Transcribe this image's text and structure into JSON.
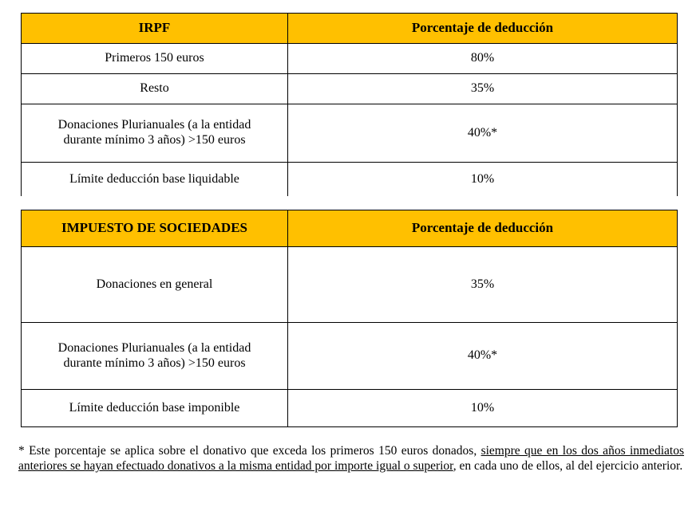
{
  "colors": {
    "header_bg": "#ffc000",
    "border": "#000000",
    "text": "#000000",
    "page_bg": "#ffffff"
  },
  "tables": {
    "irpf": {
      "headers": [
        "IRPF",
        "Porcentaje de deducción"
      ],
      "rows": [
        {
          "concept": "Primeros 150 euros",
          "value": "80%"
        },
        {
          "concept": "Resto",
          "value": "35%"
        },
        {
          "concept": "Donaciones Plurianuales (a la entidad durante mínimo 3 años) >150 euros",
          "value": "40%*"
        },
        {
          "concept": "Límite deducción base liquidable",
          "value": "10%"
        }
      ]
    },
    "sociedades": {
      "headers": [
        "IMPUESTO DE SOCIEDADES",
        "Porcentaje de deducción"
      ],
      "rows": [
        {
          "concept": "Donaciones en general",
          "value": "35%"
        },
        {
          "concept": "Donaciones Plurianuales (a la entidad durante mínimo 3 años) >150 euros",
          "value": "40%*"
        },
        {
          "concept": "Límite deducción base imponible",
          "value": "10%"
        }
      ]
    }
  },
  "footnote": {
    "before": "* Este porcentaje se aplica sobre el donativo que exceda los primeros 150 euros donados, ",
    "underlined": "siempre que en los dos años inmediatos anteriores se hayan efectuado donativos a la misma entidad por importe igual o superior",
    "after": ", en cada uno de ellos, al del ejercicio anterior."
  }
}
